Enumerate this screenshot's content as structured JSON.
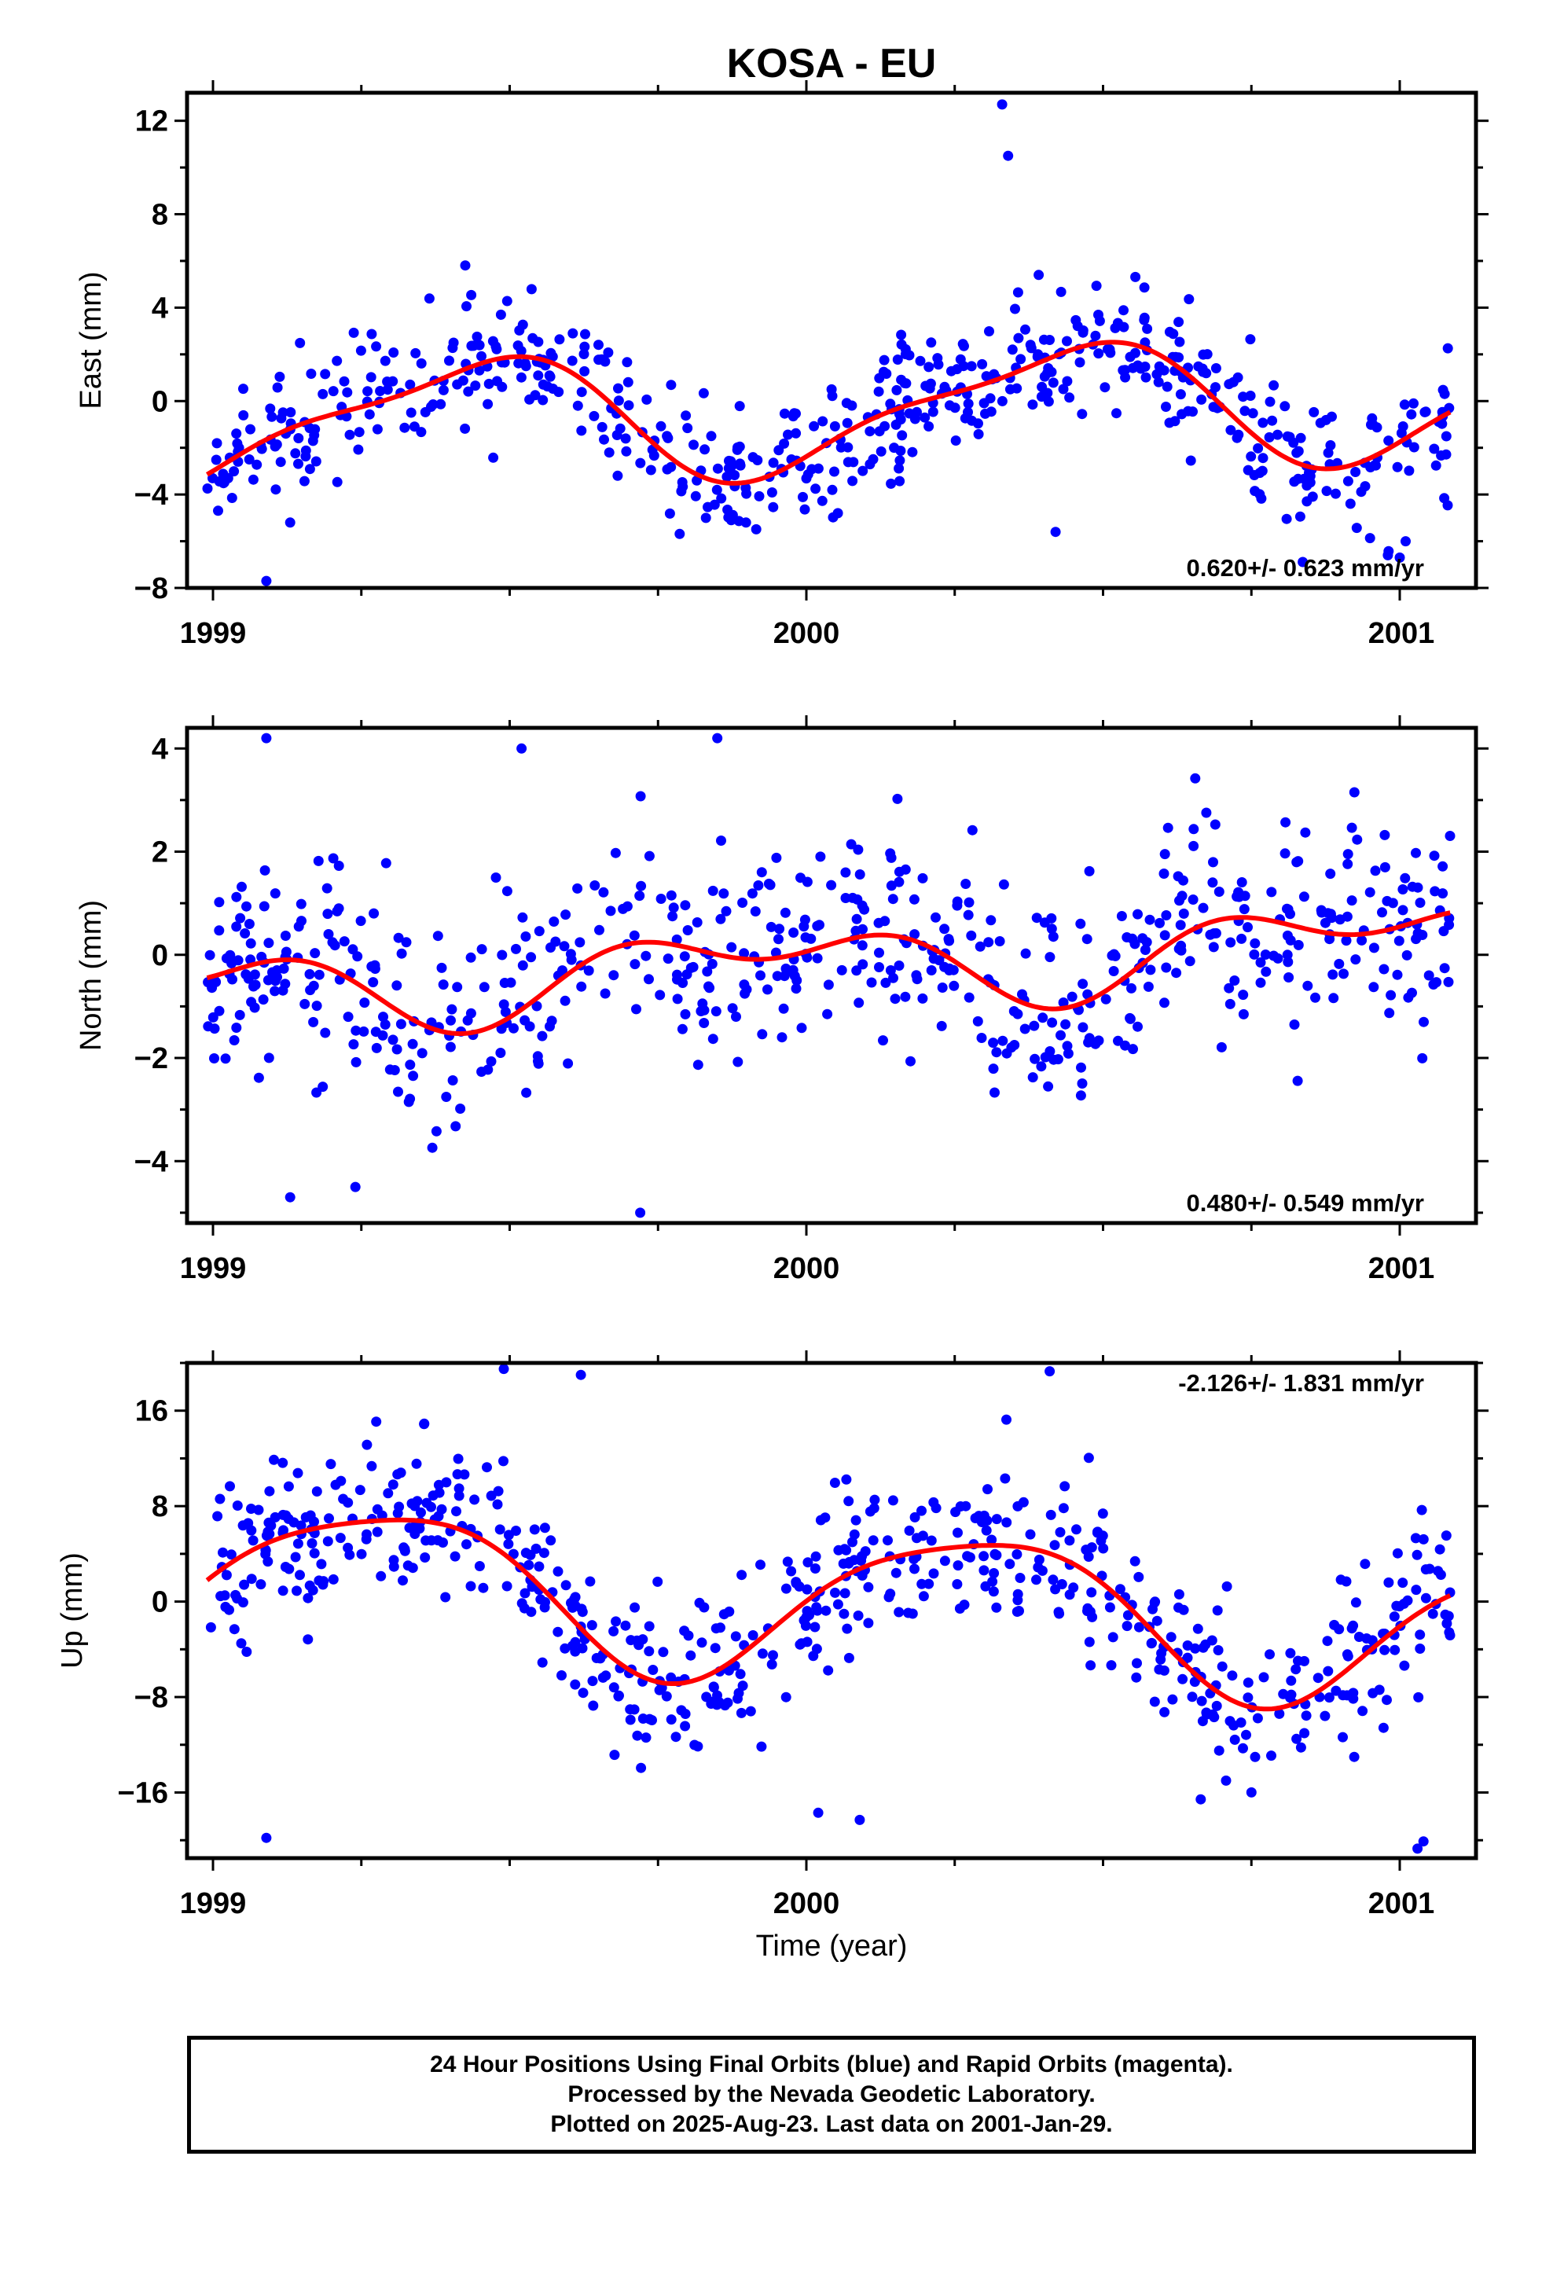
{
  "title": "KOSA - EU",
  "colors": {
    "points": "#0000ff",
    "fit": "#ff0000",
    "frame": "#000000"
  },
  "xaxis": {
    "label": "Time (year)",
    "ticks": [
      "1999",
      "2000",
      "2001"
    ],
    "range": [
      1998.95,
      2001.12
    ]
  },
  "chart_data": [
    {
      "type": "scatter",
      "name": "east",
      "ylabel": "East (mm)",
      "ylim": [
        -8,
        13.2
      ],
      "yticks": [
        12,
        8,
        4,
        0,
        -4,
        -8
      ],
      "rate_label": "0.620+/- 0.623 mm/yr",
      "fit_params": {
        "c0": -0.45,
        "a1": 2.5,
        "p1": -1.15,
        "a2": 0.75,
        "p2": 0.5,
        "slope": 0.62
      },
      "noise": 1.5,
      "point_count": 600,
      "outliers": [
        [
          1999.09,
          -7.7
        ],
        [
          1999.13,
          -5.2
        ],
        [
          2000.33,
          12.7
        ],
        [
          2000.34,
          10.5
        ],
        [
          2000.42,
          -5.6
        ],
        [
          2000.98,
          -6.6
        ],
        [
          2001.01,
          -6.0
        ],
        [
          2001.0,
          -6.7
        ]
      ]
    },
    {
      "type": "scatter",
      "name": "north",
      "ylabel": "North (mm)",
      "ylim": [
        -5.2,
        4.4
      ],
      "yticks": [
        4,
        2,
        0,
        -2,
        -4
      ],
      "rate_label": "0.480+/- 0.549 mm/yr",
      "fit_params": {
        "c0": -0.2,
        "a1": 0.6,
        "p1": 2.1,
        "a2": 0.45,
        "p2": -0.6,
        "slope": 0.48
      },
      "noise": 1.0,
      "point_count": 620,
      "outliers": [
        [
          1999.09,
          4.2
        ],
        [
          1999.85,
          4.2
        ],
        [
          1999.72,
          -5.0
        ],
        [
          1999.13,
          -4.7
        ],
        [
          1999.24,
          -4.5
        ],
        [
          1999.52,
          4.0
        ]
      ]
    },
    {
      "type": "scatter",
      "name": "up",
      "ylabel": "Up (mm)",
      "ylim": [
        -21.5,
        20
      ],
      "yticks": [
        16,
        8,
        0,
        -8,
        -16
      ],
      "rate_label": "-2.126+/- 1.831 mm/yr",
      "fit_params": {
        "c0": 0.1,
        "a1": 6.3,
        "p1": -0.2,
        "a2": 1.2,
        "p2": 1.5,
        "slope": -2.126
      },
      "noise": 3.3,
      "point_count": 640,
      "outliers": [
        [
          1999.09,
          -19.8
        ],
        [
          2001.03,
          -20.7
        ],
        [
          2001.04,
          -20.1
        ],
        [
          1999.49,
          19.5
        ],
        [
          2000.41,
          19.3
        ],
        [
          1999.62,
          19.0
        ],
        [
          2000.02,
          -17.7
        ],
        [
          2000.09,
          -18.3
        ]
      ]
    }
  ],
  "footer": {
    "line1": "24 Hour Positions Using Final Orbits (blue) and Rapid Orbits (magenta).",
    "line2": "Processed by the Nevada Geodetic Laboratory.",
    "line3": "Plotted on 2025-Aug-23. Last data on 2001-Jan-29."
  }
}
